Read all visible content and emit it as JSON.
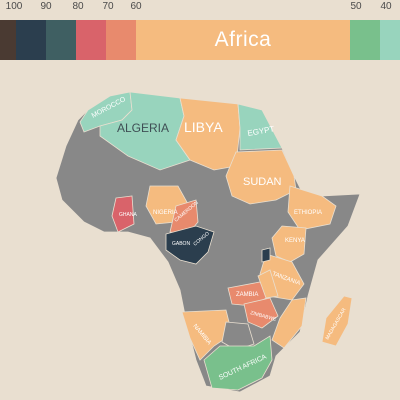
{
  "legend": {
    "ticks": [
      "100",
      "90",
      "80",
      "70",
      "60",
      "50",
      "40"
    ],
    "highlight_label": "Africa",
    "segments": [
      {
        "color": "#4a3a32"
      },
      {
        "color": "#2b3e4e"
      },
      {
        "color": "#3f5f62"
      },
      {
        "color": "#d9636a"
      },
      {
        "color": "#e88a6d"
      },
      {
        "color": "#f5bb7f",
        "label": "Africa"
      },
      {
        "color": "#79c08c"
      },
      {
        "color": "#98d4bd"
      }
    ]
  },
  "map": {
    "colors": {
      "no_data": "#888888",
      "teal": "#98d4bd",
      "orange": "#f5bb7f",
      "salmon": "#e88a6d",
      "coral": "#d9636a",
      "dark": "#2b3e4e",
      "green": "#79c08c"
    },
    "labels": {
      "morocco": "MOROCCO",
      "algeria": "ALGERIA",
      "libya": "LIBYA",
      "egypt": "EGYPT",
      "sudan": "SUDAN",
      "ethiopia": "ETHIOPIA",
      "nigeria": "NIGERIA",
      "ghana": "GHANA",
      "gabon": "GABON",
      "congo": "CONGO",
      "kenya": "KENYA",
      "tanzania": "TANZANIA",
      "zambia": "ZAMBIA",
      "zimbabwe": "ZIMBABWE",
      "namibia": "NAMIBIA",
      "south_africa": "SOUTH AFRICA",
      "madagascar": "MADAGASCAR",
      "cameroon": "CAMEROON"
    }
  }
}
